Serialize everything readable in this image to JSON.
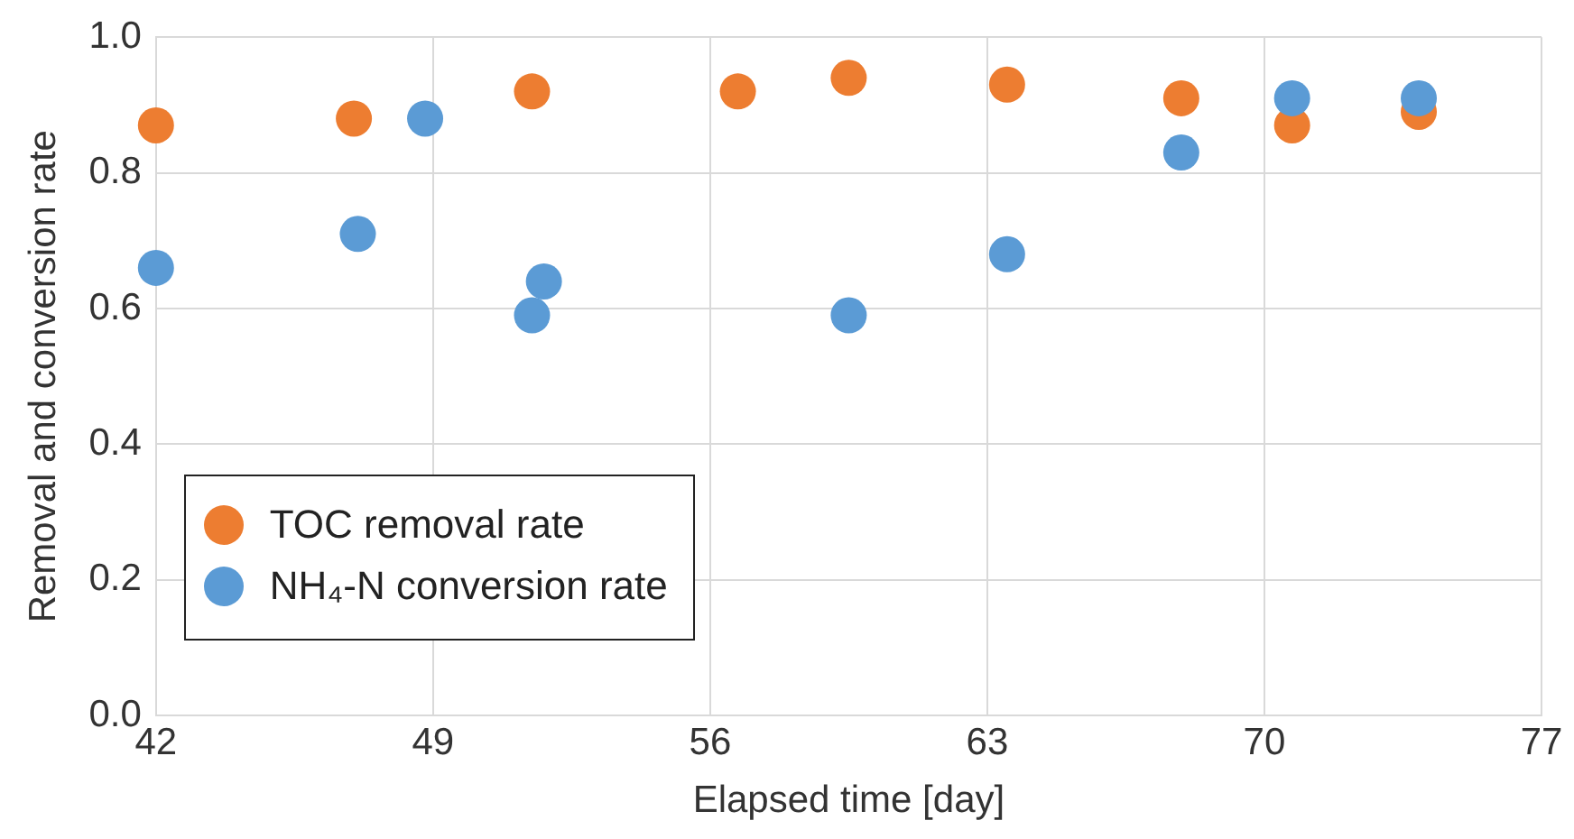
{
  "chart_data": {
    "type": "scatter",
    "xlabel": "Elapsed time [day]",
    "ylabel": "Removal and conversion rate",
    "xlim": [
      42,
      77
    ],
    "xticks": [
      42,
      49,
      56,
      63,
      70,
      77
    ],
    "ylim": [
      0,
      1
    ],
    "yticks": [
      {
        "value": 0,
        "label": "0.0"
      },
      {
        "value": 0.2,
        "label": "0.2"
      },
      {
        "value": 0.4,
        "label": "0.4"
      },
      {
        "value": 0.6,
        "label": "0.6"
      },
      {
        "value": 0.8,
        "label": "0.8"
      },
      {
        "value": 1,
        "label": "1.0"
      }
    ],
    "grid": true,
    "legend": "bottom left",
    "marker": "circle",
    "series": [
      {
        "name": "TOC removal rate",
        "color": "#ed7d31",
        "x": [
          42,
          47,
          51.5,
          56.7,
          59.5,
          63.5,
          67.9,
          70.7,
          73.9
        ],
        "values": [
          0.87,
          0.88,
          0.92,
          0.92,
          0.94,
          0.93,
          0.91,
          0.87,
          0.89
        ]
      },
      {
        "name": "NH₄-N conversion rate",
        "color": "#5b9bd5",
        "x": [
          42,
          47.1,
          48.8,
          51.5,
          51.8,
          59.5,
          63.5,
          67.9,
          70.7,
          73.9
        ],
        "values": [
          0.66,
          0.71,
          0.88,
          0.59,
          0.64,
          0.59,
          0.68,
          0.83,
          0.91,
          0.91
        ]
      }
    ]
  }
}
